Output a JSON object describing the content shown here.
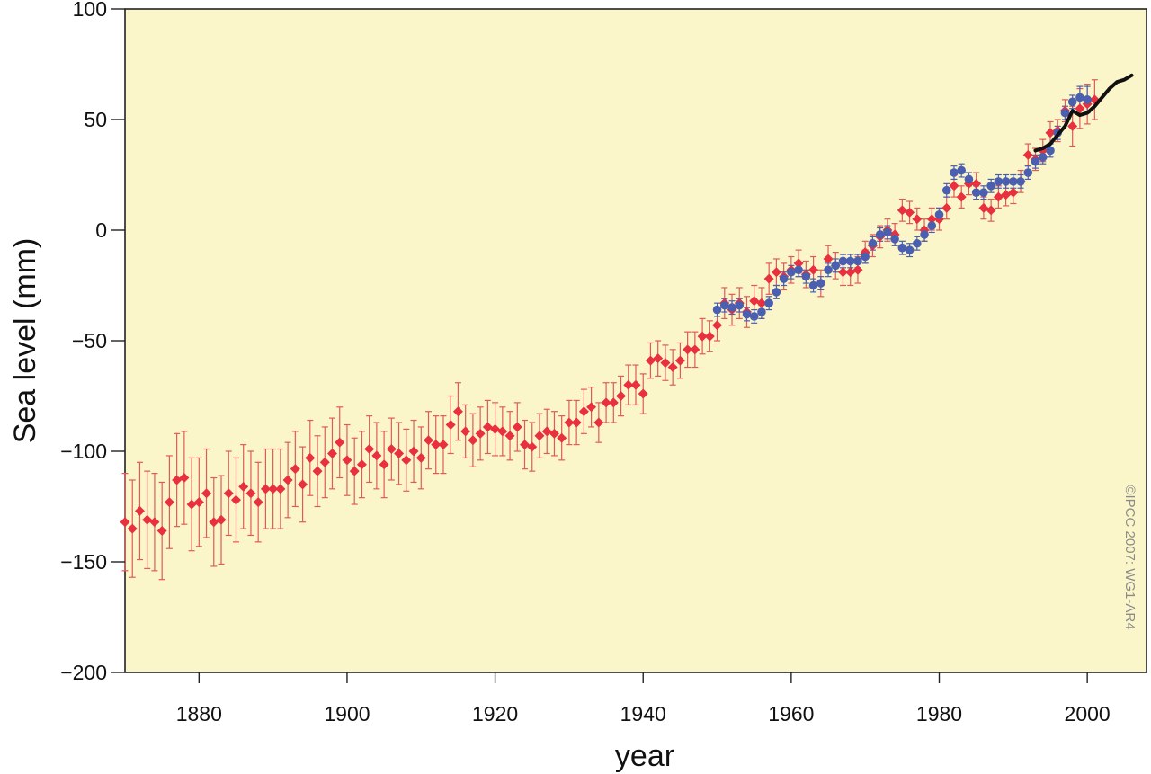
{
  "chart_data": {
    "type": "scatter",
    "title": "",
    "xlabel": "year",
    "ylabel": "Sea level (mm)",
    "xlim": [
      1870,
      2008
    ],
    "ylim": [
      -200,
      100
    ],
    "xticks": [
      1880,
      1900,
      1920,
      1940,
      1960,
      1980,
      2000
    ],
    "yticks": [
      -200,
      -150,
      -100,
      -50,
      0,
      50,
      100
    ],
    "xtick_labels": [
      "1880",
      "1900",
      "1920",
      "1940",
      "1960",
      "1980",
      "2000"
    ],
    "ytick_labels": [
      "−200",
      "−150",
      "−100",
      "−50",
      "0",
      "50",
      "100"
    ],
    "credit": "©IPCC 2007: WG1-AR4",
    "grid": false,
    "colors": {
      "background": "#fbf6c9",
      "red_series": "#e8303f",
      "red_error": "#e05a5a",
      "blue_series": "#4a5fb0",
      "black_series": "#111111"
    },
    "series": [
      {
        "marker": "diamond",
        "color": "#e8303f",
        "x": [
          1870,
          1871,
          1872,
          1873,
          1874,
          1875,
          1876,
          1877,
          1878,
          1879,
          1880,
          1881,
          1882,
          1883,
          1884,
          1885,
          1886,
          1887,
          1888,
          1889,
          1890,
          1891,
          1892,
          1893,
          1894,
          1895,
          1896,
          1897,
          1898,
          1899,
          1900,
          1901,
          1902,
          1903,
          1904,
          1905,
          1906,
          1907,
          1908,
          1909,
          1910,
          1911,
          1912,
          1913,
          1914,
          1915,
          1916,
          1917,
          1918,
          1919,
          1920,
          1921,
          1922,
          1923,
          1924,
          1925,
          1926,
          1927,
          1928,
          1929,
          1930,
          1931,
          1932,
          1933,
          1934,
          1935,
          1936,
          1937,
          1938,
          1939,
          1940,
          1941,
          1942,
          1943,
          1944,
          1945,
          1946,
          1947,
          1948,
          1949,
          1950,
          1951,
          1952,
          1953,
          1954,
          1955,
          1956,
          1957,
          1958,
          1959,
          1960,
          1961,
          1962,
          1963,
          1964,
          1965,
          1966,
          1967,
          1968,
          1969,
          1970,
          1971,
          1972,
          1973,
          1974,
          1975,
          1976,
          1977,
          1978,
          1979,
          1980,
          1981,
          1982,
          1983,
          1984,
          1985,
          1986,
          1987,
          1988,
          1989,
          1990,
          1991,
          1992,
          1993,
          1994,
          1995,
          1996,
          1997,
          1998,
          1999,
          2000,
          2001
        ],
        "y": [
          -132,
          -135,
          -127,
          -131,
          -132,
          -136,
          -123,
          -113,
          -112,
          -124,
          -123,
          -119,
          -132,
          -131,
          -119,
          -122,
          -116,
          -119,
          -123,
          -117,
          -117,
          -117,
          -113,
          -108,
          -115,
          -103,
          -109,
          -105,
          -101,
          -96,
          -104,
          -109,
          -106,
          -99,
          -102,
          -106,
          -99,
          -101,
          -104,
          -100,
          -103,
          -95,
          -97,
          -97,
          -88,
          -82,
          -91,
          -95,
          -92,
          -89,
          -90,
          -91,
          -93,
          -89,
          -97,
          -98,
          -93,
          -91,
          -92,
          -94,
          -87,
          -87,
          -82,
          -80,
          -87,
          -78,
          -78,
          -75,
          -70,
          -70,
          -74,
          -59,
          -58,
          -60,
          -62,
          -59,
          -54,
          -54,
          -48,
          -48,
          -43,
          -33,
          -36,
          -33,
          -37,
          -32,
          -33,
          -22,
          -19,
          -21,
          -18,
          -15,
          -20,
          -18,
          -24,
          -13,
          -16,
          -19,
          -19,
          -18,
          -10,
          -7,
          -3,
          0,
          -2,
          9,
          8,
          5,
          0,
          5,
          5,
          10,
          20,
          15,
          21,
          21,
          10,
          9,
          15,
          16,
          17,
          22,
          34,
          32,
          36,
          44,
          45,
          54,
          47,
          55,
          57,
          59
        ],
        "err": [
          22,
          22,
          22,
          22,
          22,
          22,
          21,
          21,
          21,
          21,
          20,
          20,
          20,
          20,
          19,
          19,
          19,
          19,
          18,
          18,
          18,
          18,
          17,
          17,
          17,
          17,
          16,
          16,
          16,
          16,
          16,
          15,
          15,
          15,
          15,
          15,
          14,
          14,
          14,
          14,
          14,
          13,
          13,
          13,
          13,
          13,
          12,
          12,
          12,
          12,
          12,
          11,
          11,
          11,
          11,
          11,
          10,
          10,
          10,
          10,
          10,
          10,
          10,
          9,
          9,
          9,
          9,
          9,
          9,
          9,
          9,
          8,
          8,
          8,
          8,
          8,
          8,
          8,
          8,
          7,
          7,
          7,
          7,
          7,
          7,
          7,
          7,
          7,
          6,
          6,
          6,
          6,
          6,
          6,
          6,
          6,
          6,
          6,
          6,
          6,
          5,
          5,
          5,
          5,
          5,
          5,
          5,
          5,
          5,
          5,
          5,
          5,
          5,
          5,
          5,
          5,
          5,
          5,
          5,
          5,
          5,
          5,
          5,
          5,
          5,
          5,
          5,
          5,
          9,
          9,
          9,
          9
        ]
      },
      {
        "marker": "circle",
        "color": "#4a5fb0",
        "x": [
          1950,
          1951,
          1952,
          1953,
          1954,
          1955,
          1956,
          1957,
          1958,
          1959,
          1960,
          1961,
          1962,
          1963,
          1964,
          1965,
          1966,
          1967,
          1968,
          1969,
          1970,
          1971,
          1972,
          1973,
          1974,
          1975,
          1976,
          1977,
          1978,
          1979,
          1980,
          1981,
          1982,
          1983,
          1984,
          1985,
          1986,
          1987,
          1988,
          1989,
          1990,
          1991,
          1992,
          1993,
          1994,
          1995,
          1996,
          1997,
          1998,
          1999,
          2000
        ],
        "y": [
          -36,
          -34,
          -35,
          -34,
          -38,
          -39,
          -37,
          -33,
          -28,
          -22,
          -19,
          -18,
          -21,
          -25,
          -24,
          -18,
          -16,
          -14,
          -14,
          -14,
          -12,
          -6,
          -2,
          -1,
          -4,
          -8,
          -9,
          -6,
          -2,
          2,
          7,
          18,
          26,
          27,
          23,
          17,
          17,
          20,
          22,
          22,
          22,
          22,
          26,
          31,
          33,
          36,
          44,
          53,
          58,
          60,
          59
        ],
        "err": [
          3,
          3,
          3,
          3,
          3,
          3,
          3,
          3,
          3,
          3,
          3,
          3,
          3,
          3,
          3,
          3,
          3,
          3,
          3,
          3,
          3,
          3,
          3,
          3,
          3,
          3,
          3,
          3,
          3,
          3,
          3,
          3,
          3,
          3,
          3,
          3,
          3,
          3,
          3,
          3,
          3,
          3,
          3,
          3,
          3,
          3,
          3,
          3,
          3,
          5,
          6
        ]
      },
      {
        "marker": "line",
        "color": "#111111",
        "x": [
          1993,
          1994,
          1995,
          1996,
          1997,
          1998,
          1999,
          2000,
          2001,
          2002,
          2003,
          2004,
          2005,
          2006
        ],
        "y": [
          36,
          37,
          39,
          43,
          47,
          54,
          52,
          53,
          56,
          60,
          64,
          67,
          68,
          70
        ]
      }
    ]
  }
}
